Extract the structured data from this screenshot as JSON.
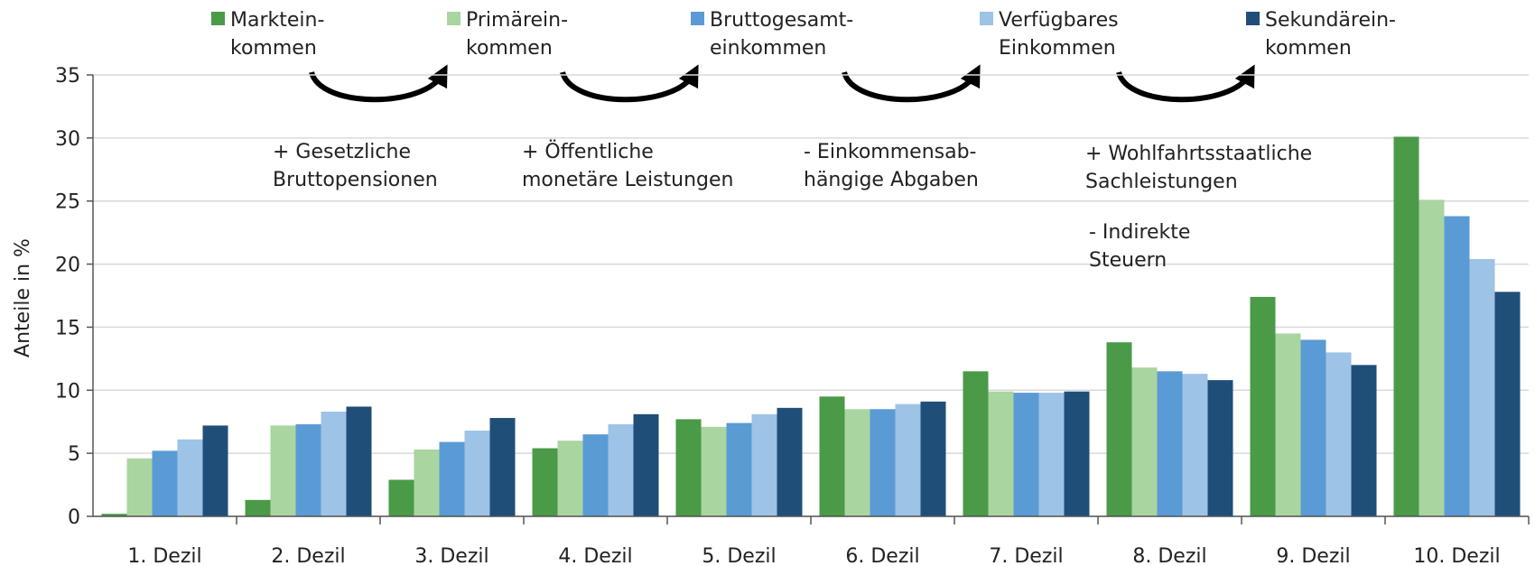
{
  "chart_data": {
    "type": "bar",
    "y_label": "Anteile in %",
    "categories": [
      "1. Dezil",
      "2. Dezil",
      "3. Dezil",
      "4. Dezil",
      "5. Dezil",
      "6. Dezil",
      "7. Dezil",
      "8. Dezil",
      "9. Dezil",
      "10. Dezil"
    ],
    "series": [
      {
        "name": "Marktein-\nkommen",
        "color": "#4a9a48",
        "values": [
          0.2,
          1.3,
          2.9,
          5.4,
          7.7,
          9.5,
          11.5,
          13.8,
          17.4,
          30.1
        ]
      },
      {
        "name": "Primärein-\nkommen",
        "color": "#a9d5a0",
        "values": [
          4.6,
          7.2,
          5.3,
          6.0,
          7.1,
          8.5,
          9.9,
          11.8,
          14.5,
          25.1
        ]
      },
      {
        "name": "Bruttogesamt-\neinkommen",
        "color": "#5b9bd5",
        "values": [
          5.2,
          7.3,
          5.9,
          6.5,
          7.4,
          8.5,
          9.8,
          11.5,
          14.0,
          23.8
        ]
      },
      {
        "name": "Verfügbares\nEinkommen",
        "color": "#9dc3e6",
        "values": [
          6.1,
          8.3,
          6.8,
          7.3,
          8.1,
          8.9,
          9.8,
          11.3,
          13.0,
          20.4
        ]
      },
      {
        "name": "Sekundärein-\nkommen",
        "color": "#1f4e79",
        "values": [
          7.2,
          8.7,
          7.8,
          8.1,
          8.6,
          9.1,
          9.9,
          10.8,
          12.0,
          17.8
        ]
      }
    ],
    "annotations": [
      "+ Gesetzliche\nBruttopensionen",
      "+ Öffentliche\nmonetäre Leistungen",
      "- Einkommensab-\nhängige Abgaben",
      "+ Wohlfahrtsstaatliche\nSachleistungen",
      "- Indirekte\nSteuern"
    ],
    "ylim": [
      0,
      35
    ],
    "yticks": [
      0,
      5,
      10,
      15,
      20,
      25,
      30,
      35
    ],
    "grid": true
  }
}
